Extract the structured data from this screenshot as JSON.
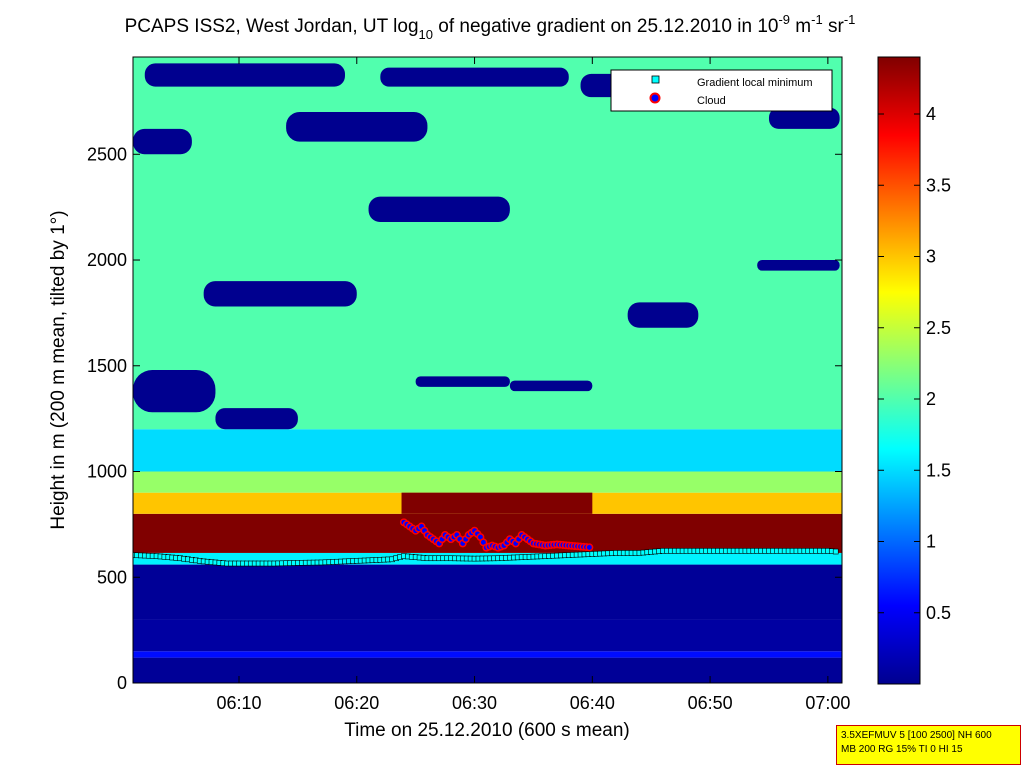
{
  "chart_data": {
    "type": "heatmap",
    "title": {
      "main": "PCAPS ISS2, West Jordan, UT log",
      "sub10": "10",
      "mid": " of negative gradient on 25.12.2010 in 10",
      "exp1": "-9",
      "unit1": " m",
      "exp2": "-1",
      "unit2": " sr",
      "exp3": "-1"
    },
    "xlabel": "Time on 25.12.2010 (600 s mean)",
    "ylabel": "Height in m (200 m mean, tilted by 1°)",
    "x_ticks": [
      "06:10",
      "06:20",
      "06:30",
      "06:40",
      "06:50",
      "07:00"
    ],
    "x_tick_minutes": [
      10,
      20,
      30,
      40,
      50,
      60
    ],
    "x_range_minutes": [
      1,
      61.2
    ],
    "y_ticks": [
      0,
      500,
      1000,
      1500,
      2000,
      2500
    ],
    "ylim": [
      0,
      2960
    ],
    "colorbar": {
      "ticks": [
        "0.5",
        "1",
        "1.5",
        "2",
        "2.5",
        "3",
        "3.5",
        "4"
      ],
      "tick_values": [
        0.5,
        1,
        1.5,
        2,
        2.5,
        3,
        3.5,
        4
      ],
      "range": [
        0,
        4.4
      ],
      "colormap": "jet"
    },
    "legend": {
      "position": "top-right",
      "items": [
        "Gradient local minimum",
        "Cloud"
      ]
    },
    "series": [
      {
        "name": "Gradient local minimum",
        "time_min": [
          1,
          3,
          5,
          7,
          9,
          11,
          13,
          15,
          17,
          19,
          21,
          23,
          24,
          26,
          28,
          30,
          32,
          34,
          36,
          38,
          40,
          42,
          44,
          46,
          48,
          50,
          52,
          54,
          56,
          58,
          60,
          61
        ],
        "height_m": [
          605,
          600,
          590,
          575,
          565,
          565,
          565,
          568,
          570,
          575,
          580,
          585,
          600,
          590,
          590,
          588,
          590,
          595,
          600,
          605,
          610,
          615,
          615,
          625,
          625,
          625,
          625,
          625,
          625,
          625,
          625,
          620
        ]
      },
      {
        "name": "Cloud",
        "time_min": [
          24,
          24.5,
          25,
          25.5,
          26,
          26.5,
          27,
          27.5,
          28,
          28.5,
          29,
          29.5,
          30,
          30.5,
          31,
          31.5,
          32,
          32.5,
          33,
          33.5,
          34,
          34.5,
          35,
          36,
          37,
          38,
          39,
          40
        ],
        "height_m": [
          760,
          740,
          720,
          740,
          700,
          680,
          660,
          700,
          680,
          700,
          660,
          700,
          720,
          690,
          640,
          650,
          640,
          650,
          680,
          660,
          700,
          680,
          660,
          650,
          655,
          650,
          645,
          640
        ]
      }
    ],
    "layers": [
      {
        "h0": 0,
        "h1": 120,
        "value": 0.1
      },
      {
        "h0": 120,
        "h1": 150,
        "value": 0.6
      },
      {
        "h0": 150,
        "h1": 300,
        "value": 0.15
      },
      {
        "h0": 300,
        "h1": 560,
        "value": 0.1
      },
      {
        "h0": 560,
        "h1": 615,
        "value": 1.6
      },
      {
        "h0": 615,
        "h1": 800,
        "value": 4.4
      },
      {
        "h0": 800,
        "h1": 900,
        "value": 3.0
      },
      {
        "h0": 900,
        "h1": 1000,
        "value": 2.3
      },
      {
        "h0": 1000,
        "h1": 1200,
        "value": 1.5
      },
      {
        "h0": 1200,
        "h1": 2960,
        "value": 2.0
      }
    ],
    "dark_patches": [
      {
        "t0": 1,
        "t1": 8,
        "h0": 1280,
        "h1": 1480
      },
      {
        "t0": 8,
        "t1": 15,
        "h0": 1200,
        "h1": 1300
      },
      {
        "t0": 7,
        "t1": 20,
        "h0": 1780,
        "h1": 1900
      },
      {
        "t0": 25,
        "t1": 33,
        "h0": 1400,
        "h1": 1450
      },
      {
        "t0": 33,
        "t1": 40,
        "h0": 1380,
        "h1": 1430
      },
      {
        "t0": 43,
        "t1": 49,
        "h0": 1680,
        "h1": 1800
      },
      {
        "t0": 54,
        "t1": 61,
        "h0": 1950,
        "h1": 2000
      },
      {
        "t0": 21,
        "t1": 33,
        "h0": 2180,
        "h1": 2300
      },
      {
        "t0": 14,
        "t1": 26,
        "h0": 2560,
        "h1": 2700
      },
      {
        "t0": 1,
        "t1": 6,
        "h0": 2500,
        "h1": 2620
      },
      {
        "t0": 2,
        "t1": 19,
        "h0": 2820,
        "h1": 2930
      },
      {
        "t0": 22,
        "t1": 38,
        "h0": 2820,
        "h1": 2910
      },
      {
        "t0": 39,
        "t1": 46,
        "h0": 2770,
        "h1": 2880
      },
      {
        "t0": 55,
        "t1": 61,
        "h0": 2620,
        "h1": 2720
      }
    ],
    "cloud_block": {
      "t0": 23.8,
      "t1": 40,
      "h0": 800,
      "h1": 900,
      "value": 4.4
    }
  },
  "info_box": {
    "line1": "3.5XEFMUV 5 [100 2500] NH 600",
    "line2": "MB 200 RG 15% TI 0 HI 15"
  },
  "colors": {
    "axis": "#000000",
    "legend_minimum": "#00ffff",
    "legend_cloud_fill": "#0000ff",
    "legend_cloud_edge": "#ff0000"
  }
}
